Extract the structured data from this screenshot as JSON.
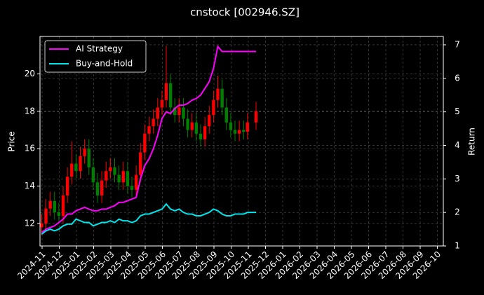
{
  "chart_data": {
    "type": "candlestick",
    "title": "cnstock [002946.SZ]",
    "ylabel": "Price",
    "y2label": "Return",
    "x": [
      "2024-11",
      "2024-11",
      "2024-11",
      "2024-11",
      "2024-12",
      "2024-12",
      "2024-12",
      "2024-12",
      "2025-01",
      "2025-01",
      "2025-01",
      "2025-01",
      "2025-02",
      "2025-02",
      "2025-02",
      "2025-02",
      "2025-03",
      "2025-03",
      "2025-03",
      "2025-03",
      "2025-04",
      "2025-04",
      "2025-04",
      "2025-04",
      "2025-05",
      "2025-05",
      "2025-05",
      "2025-05",
      "2025-06",
      "2025-06",
      "2025-06",
      "2025-06",
      "2025-07",
      "2025-07",
      "2025-07",
      "2025-07",
      "2025-08",
      "2025-08",
      "2025-08",
      "2025-08",
      "2025-09",
      "2025-09",
      "2025-09",
      "2025-09",
      "2025-10",
      "2025-10",
      "2025-10",
      "2025-10",
      "2025-11",
      "2025-11"
    ],
    "open": [
      11.8,
      12.0,
      12.8,
      13.2,
      12.6,
      12.4,
      13.5,
      14.5,
      15.2,
      14.8,
      15.6,
      16.0,
      15.0,
      14.2,
      13.5,
      14.3,
      14.8,
      15.0,
      14.6,
      14.2,
      14.8,
      14.0,
      13.8,
      14.6,
      15.8,
      16.8,
      17.2,
      17.6,
      18.2,
      18.6,
      19.5,
      18.2,
      17.8,
      18.2,
      17.6,
      17.0,
      17.4,
      16.8,
      16.5,
      17.2,
      17.8,
      18.6,
      19.2,
      18.2,
      17.4,
      17.0,
      16.8,
      17.0,
      16.9,
      17.4
    ],
    "high": [
      12.5,
      13.3,
      13.7,
      13.7,
      13.1,
      14.0,
      15.0,
      16.4,
      15.7,
      16.1,
      16.5,
      16.5,
      15.5,
      14.7,
      14.8,
      15.3,
      15.5,
      15.5,
      15.1,
      15.3,
      15.3,
      14.5,
      15.1,
      16.3,
      17.3,
      17.7,
      18.1,
      18.7,
      19.1,
      21.5,
      20.0,
      18.7,
      18.7,
      18.7,
      18.1,
      17.9,
      17.9,
      17.3,
      17.7,
      18.3,
      19.1,
      19.9,
      19.7,
      18.7,
      17.9,
      17.5,
      17.5,
      17.5,
      17.9,
      18.5
    ],
    "low": [
      11.4,
      11.6,
      12.4,
      12.2,
      12.0,
      12.0,
      13.1,
      14.1,
      14.4,
      14.4,
      15.2,
      14.6,
      13.8,
      13.1,
      13.1,
      13.9,
      14.4,
      14.2,
      13.8,
      13.8,
      13.6,
      13.4,
      13.4,
      14.2,
      15.4,
      16.4,
      16.8,
      17.2,
      17.8,
      18.2,
      17.8,
      17.4,
      17.4,
      17.2,
      16.6,
      16.6,
      16.4,
      16.1,
      16.1,
      16.8,
      17.4,
      18.2,
      17.8,
      17.0,
      16.6,
      16.4,
      16.4,
      16.5,
      16.5,
      17.0
    ],
    "close": [
      12.0,
      12.8,
      13.2,
      12.6,
      12.4,
      13.5,
      14.5,
      15.2,
      14.8,
      15.6,
      16.0,
      15.0,
      14.2,
      13.5,
      14.3,
      14.8,
      15.0,
      14.6,
      14.2,
      14.8,
      14.0,
      13.8,
      14.6,
      15.8,
      16.8,
      17.2,
      17.6,
      18.2,
      18.6,
      19.5,
      18.2,
      17.8,
      18.2,
      17.6,
      17.0,
      17.4,
      16.8,
      16.5,
      17.2,
      17.8,
      18.6,
      19.2,
      18.2,
      17.4,
      17.0,
      16.8,
      17.0,
      16.9,
      17.4,
      18.0
    ],
    "up_color": "#ff0000",
    "down_color": "#008000",
    "series": [
      {
        "name": "AI Strategy",
        "color": "#ff00ff",
        "axis": "y2",
        "values": [
          1.4,
          1.5,
          1.55,
          1.6,
          1.7,
          1.8,
          1.95,
          1.95,
          2.05,
          2.1,
          2.15,
          2.1,
          2.05,
          2.05,
          2.1,
          2.1,
          2.15,
          2.2,
          2.3,
          2.3,
          2.35,
          2.4,
          2.45,
          3.0,
          3.4,
          3.6,
          3.9,
          4.3,
          4.8,
          5.0,
          4.95,
          5.1,
          5.2,
          5.2,
          5.25,
          5.35,
          5.4,
          5.5,
          5.7,
          5.9,
          6.3,
          6.95,
          6.8,
          6.8,
          6.8,
          6.8,
          6.8,
          6.8,
          6.8,
          6.8
        ]
      },
      {
        "name": "Buy-and-Hold",
        "color": "#00e5ee",
        "axis": "y2",
        "values": [
          1.35,
          1.45,
          1.5,
          1.45,
          1.5,
          1.6,
          1.65,
          1.65,
          1.8,
          1.75,
          1.7,
          1.7,
          1.6,
          1.65,
          1.7,
          1.7,
          1.75,
          1.7,
          1.8,
          1.75,
          1.75,
          1.7,
          1.75,
          1.9,
          1.95,
          1.95,
          2.0,
          2.05,
          2.1,
          2.25,
          2.1,
          2.05,
          2.1,
          2.0,
          1.95,
          1.95,
          1.9,
          1.9,
          1.95,
          2.0,
          2.1,
          2.05,
          1.95,
          1.9,
          1.9,
          1.95,
          1.95,
          1.95,
          2.0,
          2.0
        ]
      }
    ],
    "xticks": [
      "2024-11",
      "2024-12",
      "2025-01",
      "2025-02",
      "2025-03",
      "2025-04",
      "2025-05",
      "2025-06",
      "2025-07",
      "2025-08",
      "2025-09",
      "2025-10",
      "2025-11",
      "2025-12",
      "2026-01",
      "2026-02",
      "2026-03",
      "2026-04",
      "2026-05",
      "2026-06",
      "2026-07",
      "2026-08",
      "2026-09",
      "2026-10"
    ],
    "ylim": [
      10.8,
      22.0
    ],
    "yticks": [
      12,
      14,
      16,
      18,
      20
    ],
    "y2lim": [
      1,
      7.25
    ],
    "y2ticks": [
      1,
      2,
      3,
      4,
      5,
      6,
      7
    ],
    "grid": true,
    "legend": "upper left"
  }
}
